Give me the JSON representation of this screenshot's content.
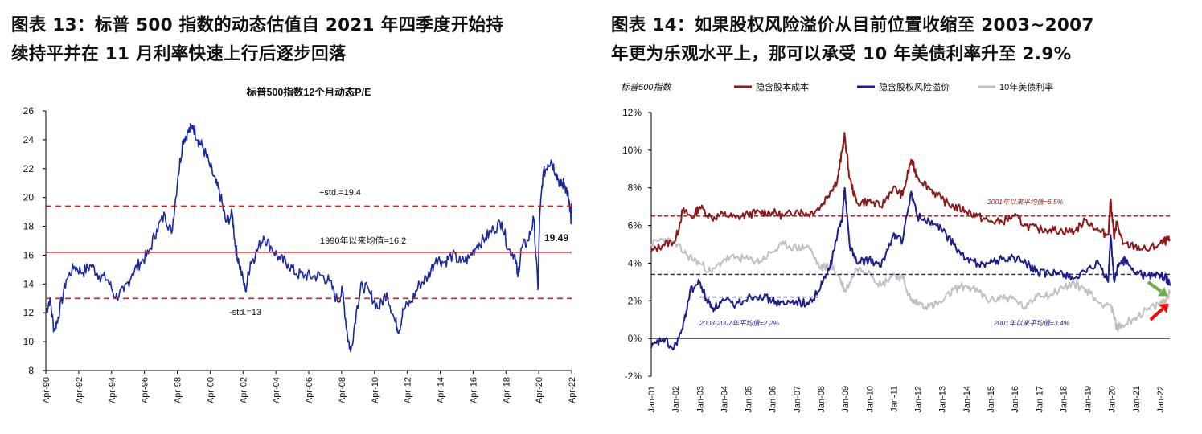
{
  "figures": [
    {
      "heading_line1": "图表 13：标普 500 指数的动态估值自 2021 年四季度开始持",
      "heading_line2": "续持平并在 11 月利率快速上行后逐步回落"
    },
    {
      "heading_line1": "图表 14：如果股权风险溢价从目前位置收缩至 2003~2007",
      "heading_line2": "年更为乐观水平上，那可以承受 10 年美债利率升至 2.9%"
    }
  ],
  "chart_data": [
    {
      "type": "line",
      "title": "标普500指数12个月动态P/E",
      "xlabel": "",
      "ylabel": "",
      "x_ticks": [
        "Apr-90",
        "Apr-92",
        "Apr-94",
        "Apr-96",
        "Apr-98",
        "Apr-00",
        "Apr-02",
        "Apr-04",
        "Apr-06",
        "Apr-08",
        "Apr-10",
        "Apr-12",
        "Apr-14",
        "Apr-16",
        "Apr-18",
        "Apr-20",
        "Apr-22"
      ],
      "y_ticks": [
        "8",
        "10",
        "12",
        "14",
        "16",
        "18",
        "20",
        "22",
        "24",
        "26"
      ],
      "ylim": [
        8,
        26
      ],
      "xlim": [
        1990.25,
        2022.25
      ],
      "grid": false,
      "series": [
        {
          "color": "#1a2a9c",
          "x": [
            1990.25,
            1990.5,
            1990.75,
            1991.0,
            1991.5,
            1992.0,
            1992.5,
            1993.0,
            1993.5,
            1994.0,
            1994.5,
            1995.0,
            1995.5,
            1996.0,
            1996.5,
            1997.0,
            1997.5,
            1997.9,
            1998.3,
            1998.6,
            1998.9,
            1999.2,
            1999.5,
            1999.8,
            2000.2,
            2000.6,
            2000.9,
            2001.2,
            2001.6,
            2001.8,
            2002.0,
            2002.4,
            2002.7,
            2003.0,
            2003.5,
            2004.0,
            2004.5,
            2005.0,
            2005.5,
            2006.0,
            2006.5,
            2007.0,
            2007.5,
            2008.0,
            2008.3,
            2008.6,
            2008.8,
            2009.2,
            2009.5,
            2010.0,
            2010.5,
            2011.0,
            2011.5,
            2011.75,
            2012.0,
            2012.5,
            2013.0,
            2013.5,
            2014.0,
            2014.5,
            2015.0,
            2015.5,
            2016.0,
            2016.5,
            2017.0,
            2017.5,
            2018.0,
            2018.4,
            2018.8,
            2018.97,
            2019.2,
            2019.6,
            2019.95,
            2020.2,
            2020.3,
            2020.5,
            2020.8,
            2021.0,
            2021.3,
            2021.6,
            2021.8,
            2022.0,
            2022.1,
            2022.2,
            2022.25
          ],
          "values": [
            12.0,
            13.0,
            10.8,
            11.7,
            14.3,
            15.2,
            14.8,
            15.3,
            14.6,
            14.3,
            13.1,
            13.5,
            14.7,
            15.5,
            16.1,
            17.8,
            18.8,
            17.5,
            21.5,
            24.0,
            24.5,
            25.0,
            24.0,
            23.5,
            22.3,
            21.0,
            20.0,
            18.3,
            18.8,
            16.5,
            15.5,
            13.5,
            15.5,
            16.0,
            17.3,
            16.5,
            15.7,
            15.4,
            14.7,
            14.6,
            14.5,
            14.6,
            14.2,
            12.8,
            13.5,
            10.5,
            9.3,
            12.5,
            14.0,
            13.3,
            12.3,
            13.4,
            11.4,
            10.8,
            12.2,
            12.8,
            14.0,
            14.5,
            15.8,
            15.5,
            16.0,
            15.5,
            15.8,
            16.7,
            17.2,
            17.8,
            18.3,
            16.4,
            16.0,
            14.5,
            16.5,
            17.0,
            18.5,
            13.6,
            18.5,
            21.5,
            22.3,
            22.6,
            21.7,
            20.8,
            21.0,
            20.3,
            19.5,
            18.5,
            19.49
          ]
        }
      ],
      "reference_lines": [
        {
          "label": "+std.=19.4",
          "value": 19.4,
          "style": "dashed",
          "color": "#e31a1c"
        },
        {
          "label": "1990年以来均值=16.2",
          "value": 16.2,
          "style": "solid",
          "color": "#e31a1c"
        },
        {
          "label": "-std.=13",
          "value": 13.0,
          "style": "dashed",
          "color": "#e31a1c"
        }
      ],
      "annotations": [
        {
          "text": "19.49"
        }
      ]
    },
    {
      "type": "line",
      "title": "",
      "xlabel": "",
      "ylabel": "标普500指数",
      "x_ticks": [
        "Jan-01",
        "Jan-02",
        "Jan-03",
        "Jan-04",
        "Jan-05",
        "Jan-06",
        "Jan-07",
        "Jan-08",
        "Jan-09",
        "Jan-10",
        "Jan-11",
        "Jan-12",
        "Jan-13",
        "Jan-14",
        "Jan-15",
        "Jan-16",
        "Jan-17",
        "Jan-18",
        "Jan-19",
        "Jan-20",
        "Jan-21",
        "Jan-22"
      ],
      "y_ticks": [
        "-2%",
        "0%",
        "2%",
        "4%",
        "6%",
        "8%",
        "10%",
        "12%"
      ],
      "ylim": [
        -2,
        12
      ],
      "xlim": [
        2001.0,
        2022.45
      ],
      "grid": false,
      "legend_position": "top",
      "series": [
        {
          "name": "隐含股本成本",
          "color": "#8b1a1a",
          "x": [
            2001.0,
            2001.5,
            2002.0,
            2002.3,
            2002.7,
            2003.0,
            2003.5,
            2004.0,
            2004.5,
            2005.0,
            2005.5,
            2006.0,
            2006.5,
            2007.0,
            2007.5,
            2008.0,
            2008.4,
            2008.7,
            2008.9,
            2009.0,
            2009.2,
            2009.5,
            2010.0,
            2010.5,
            2011.0,
            2011.4,
            2011.75,
            2012.0,
            2012.5,
            2013.0,
            2013.5,
            2014.0,
            2014.5,
            2015.0,
            2015.5,
            2016.0,
            2016.5,
            2017.0,
            2017.5,
            2018.0,
            2018.5,
            2019.0,
            2019.5,
            2019.9,
            2020.0,
            2020.15,
            2020.25,
            2020.5,
            2021.0,
            2021.5,
            2022.0,
            2022.3,
            2022.45
          ],
          "values": [
            4.6,
            5.0,
            5.2,
            6.8,
            6.4,
            7.0,
            6.4,
            6.6,
            6.4,
            6.6,
            6.7,
            6.7,
            6.5,
            6.8,
            6.6,
            7.0,
            7.8,
            8.4,
            10.0,
            10.8,
            8.5,
            7.2,
            7.3,
            7.0,
            8.0,
            7.6,
            9.5,
            8.6,
            8.0,
            7.4,
            7.0,
            6.8,
            6.5,
            6.2,
            6.2,
            6.5,
            6.0,
            5.8,
            5.8,
            5.7,
            5.7,
            6.3,
            5.7,
            5.5,
            7.4,
            5.3,
            6.2,
            5.0,
            4.9,
            4.7,
            5.0,
            5.2,
            5.2
          ]
        },
        {
          "name": "隐含股权风险溢价",
          "color": "#1f1f8c",
          "x": [
            2001.0,
            2001.5,
            2001.9,
            2002.3,
            2002.6,
            2003.0,
            2003.3,
            2003.6,
            2004.0,
            2004.5,
            2005.0,
            2005.5,
            2006.0,
            2006.5,
            2007.0,
            2007.5,
            2008.0,
            2008.4,
            2008.7,
            2008.9,
            2009.0,
            2009.2,
            2009.5,
            2010.0,
            2010.5,
            2011.0,
            2011.4,
            2011.75,
            2012.0,
            2012.5,
            2013.0,
            2013.5,
            2014.0,
            2014.5,
            2015.0,
            2015.5,
            2016.0,
            2016.5,
            2017.0,
            2017.5,
            2018.0,
            2018.5,
            2019.0,
            2019.5,
            2019.9,
            2020.0,
            2020.15,
            2020.3,
            2020.6,
            2021.0,
            2021.5,
            2022.0,
            2022.3,
            2022.45
          ],
          "values": [
            -0.5,
            0.0,
            -0.6,
            0.5,
            2.5,
            3.0,
            2.0,
            1.6,
            2.0,
            1.8,
            2.2,
            2.3,
            2.0,
            1.8,
            2.0,
            1.8,
            2.7,
            3.8,
            5.5,
            6.5,
            8.0,
            5.0,
            4.0,
            4.2,
            3.8,
            5.5,
            5.2,
            7.8,
            6.5,
            6.2,
            5.8,
            5.0,
            4.2,
            4.0,
            4.0,
            4.2,
            4.3,
            4.0,
            3.5,
            3.4,
            3.5,
            3.2,
            3.5,
            4.0,
            3.0,
            5.5,
            3.0,
            3.8,
            4.2,
            3.5,
            3.3,
            3.4,
            3.2,
            2.8
          ]
        },
        {
          "name": "10年美债利率",
          "color": "#c0c0c0",
          "x": [
            2001.0,
            2001.5,
            2002.0,
            2002.5,
            2003.0,
            2003.5,
            2004.0,
            2004.5,
            2005.0,
            2005.5,
            2006.0,
            2006.5,
            2007.0,
            2007.5,
            2008.0,
            2008.4,
            2008.8,
            2009.0,
            2009.5,
            2010.0,
            2010.5,
            2011.0,
            2011.4,
            2011.75,
            2012.0,
            2012.5,
            2013.0,
            2013.5,
            2014.0,
            2014.5,
            2015.0,
            2015.5,
            2016.0,
            2016.5,
            2017.0,
            2017.5,
            2018.0,
            2018.5,
            2019.0,
            2019.5,
            2020.0,
            2020.25,
            2020.5,
            2021.0,
            2021.5,
            2022.0,
            2022.2,
            2022.45
          ],
          "values": [
            5.0,
            5.3,
            5.0,
            4.4,
            4.0,
            3.5,
            4.2,
            4.3,
            4.2,
            4.1,
            4.6,
            5.0,
            4.8,
            4.9,
            3.7,
            3.9,
            3.2,
            2.5,
            3.7,
            3.6,
            2.8,
            3.4,
            3.2,
            2.0,
            1.9,
            1.7,
            1.9,
            2.6,
            2.8,
            2.5,
            2.0,
            2.2,
            2.1,
            1.6,
            2.4,
            2.3,
            2.7,
            2.9,
            2.6,
            1.9,
            1.8,
            0.6,
            0.7,
            1.1,
            1.5,
            1.8,
            2.0,
            2.4
          ]
        }
      ],
      "reference_lines": [
        {
          "label": "2001年以来平均值=6.5%",
          "value": 6.5,
          "style": "dashed",
          "color": "#8b1a1a"
        },
        {
          "label": "2001年以来平均值=3.4%",
          "value": 3.4,
          "style": "dashed",
          "color": "#1f1f8c"
        },
        {
          "label": "2003-2007年平均值=2.2%",
          "value": 2.2,
          "xrange": [
            2003.0,
            2007.9
          ],
          "style": "dashed",
          "color": "#1f1f8c"
        }
      ],
      "arrows": [
        {
          "color": "#70ad47",
          "from": [
            2021.55,
            3.0
          ],
          "to": [
            2022.35,
            2.25
          ]
        },
        {
          "color": "#ff0000",
          "from": [
            2021.65,
            1.0
          ],
          "to": [
            2022.4,
            1.85
          ]
        }
      ]
    }
  ]
}
